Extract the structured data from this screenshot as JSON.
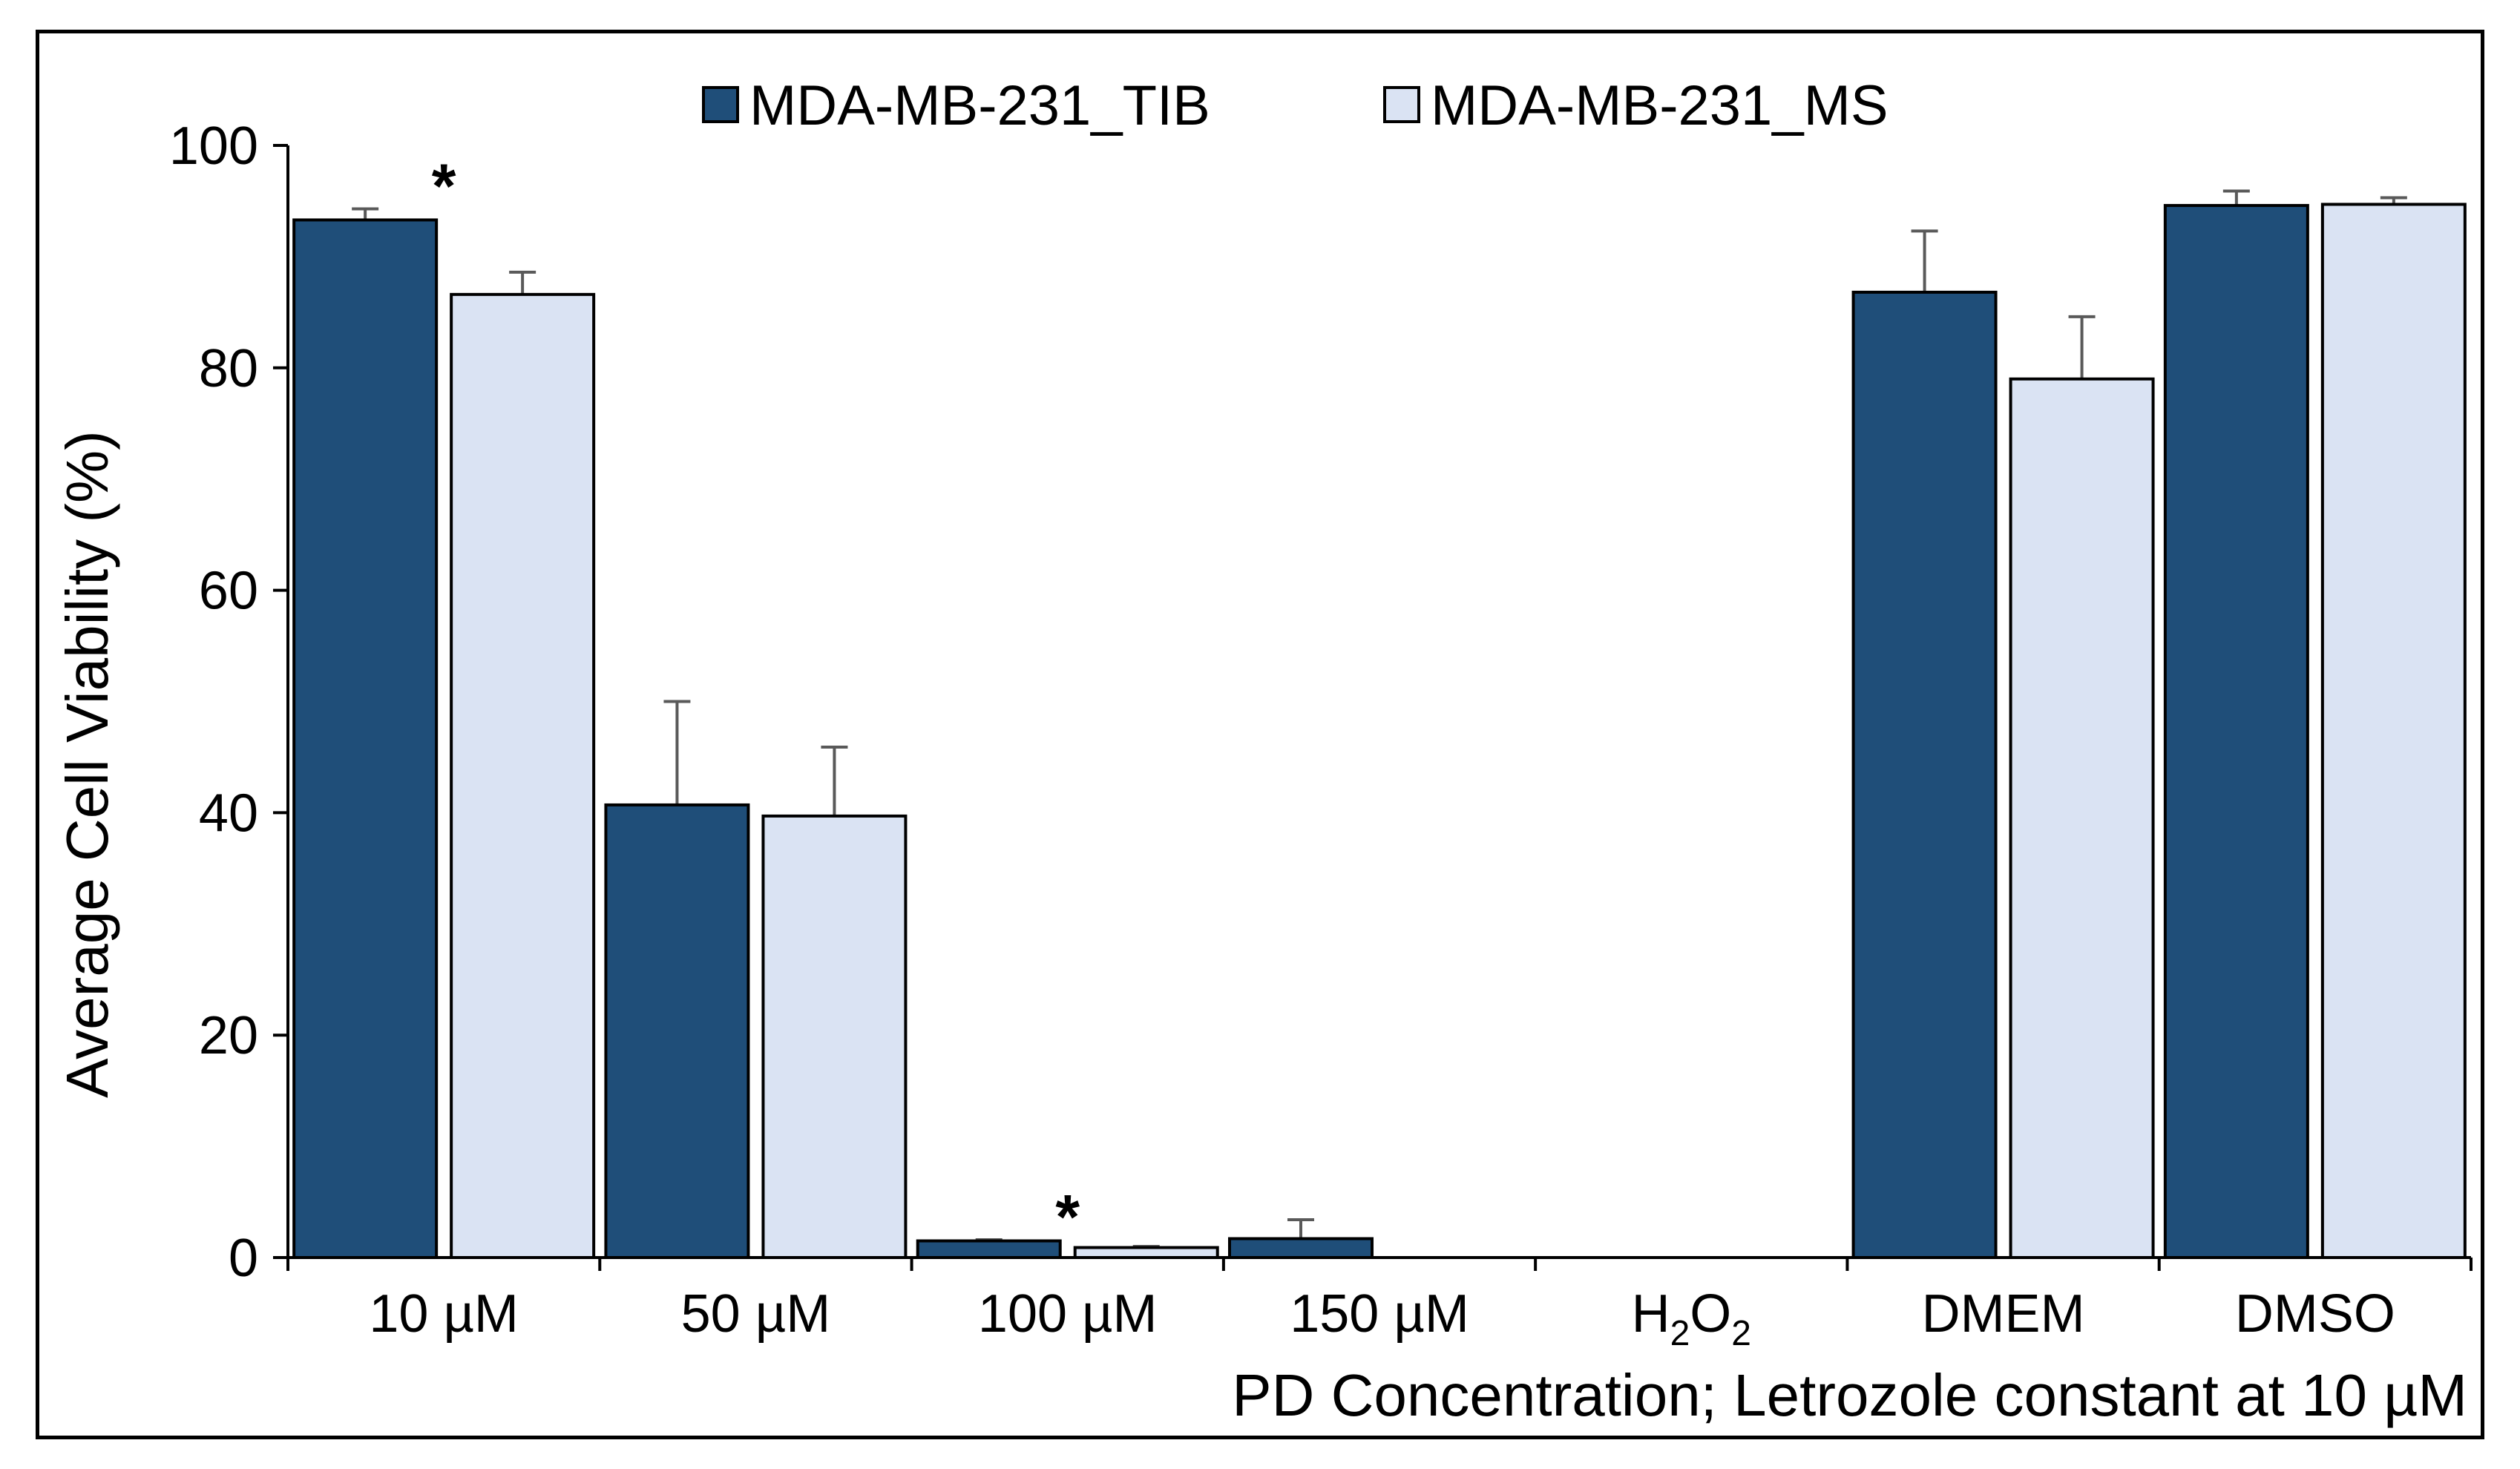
{
  "chart_data": {
    "type": "bar",
    "categories": [
      "10 µM",
      "50 µM",
      "100 µM",
      "150 µM",
      "H2O2",
      "DMEM",
      "DMSO"
    ],
    "category_labels": [
      {
        "text": "10 µM"
      },
      {
        "text": "50 µM"
      },
      {
        "text": "100 µM"
      },
      {
        "text": "150 µM"
      },
      {
        "base": "H",
        "sub1": "2",
        "mid": "O",
        "sub2": "2"
      },
      {
        "text": "DMEM"
      },
      {
        "text": "DMSO"
      }
    ],
    "series": [
      {
        "name": "MDA-MB-231_TIB",
        "color": "#1f4e79",
        "values": [
          93.3,
          40.7,
          1.5,
          1.7,
          0,
          86.8,
          94.6
        ],
        "errors": [
          1.0,
          9.3,
          0.1,
          1.7,
          0,
          5.5,
          1.3
        ]
      },
      {
        "name": "MDA-MB-231_MS",
        "color": "#dae3f3",
        "values": [
          86.6,
          39.7,
          0.9,
          0,
          0,
          79.0,
          94.7
        ],
        "errors": [
          2.0,
          6.2,
          0.1,
          0,
          0,
          5.6,
          0.6
        ]
      }
    ],
    "significance": [
      {
        "category_index": 0,
        "label": "*"
      },
      {
        "category_index": 2,
        "label": "*"
      }
    ],
    "ylim": [
      0,
      100
    ],
    "yticks": [
      0,
      20,
      40,
      60,
      80,
      100
    ],
    "ylabel": "Average Cell Viability (%)",
    "xlabel": "PD Concentration; Letrozole constant at 10 µM",
    "legend_position": "top-center",
    "grid": false
  }
}
